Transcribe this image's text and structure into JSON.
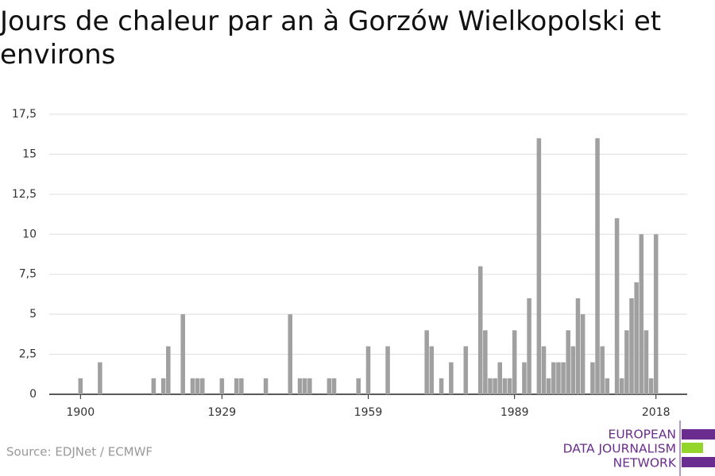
{
  "chart_data": {
    "type": "bar",
    "title": "Jours de chaleur par an à Gorzów Wielkopolski et environs",
    "source": "Source: EDJNet / ECMWF",
    "logo": [
      "EUROPEAN",
      "DATA JOURNALISM",
      "NETWORK"
    ],
    "color": "#a0a0a0",
    "x": [
      1900,
      1901,
      1902,
      1903,
      1904,
      1905,
      1906,
      1907,
      1908,
      1909,
      1910,
      1911,
      1912,
      1913,
      1914,
      1915,
      1916,
      1917,
      1918,
      1919,
      1920,
      1921,
      1922,
      1923,
      1924,
      1925,
      1926,
      1927,
      1928,
      1929,
      1930,
      1931,
      1932,
      1933,
      1934,
      1935,
      1936,
      1937,
      1938,
      1939,
      1940,
      1941,
      1942,
      1943,
      1944,
      1945,
      1946,
      1947,
      1948,
      1949,
      1950,
      1951,
      1952,
      1953,
      1954,
      1955,
      1956,
      1957,
      1958,
      1959,
      1960,
      1961,
      1962,
      1963,
      1964,
      1965,
      1966,
      1967,
      1968,
      1969,
      1970,
      1971,
      1972,
      1973,
      1974,
      1975,
      1976,
      1977,
      1978,
      1979,
      1980,
      1981,
      1982,
      1983,
      1984,
      1985,
      1986,
      1987,
      1988,
      1989,
      1990,
      1991,
      1992,
      1993,
      1994,
      1995,
      1996,
      1997,
      1998,
      1999,
      2000,
      2001,
      2002,
      2003,
      2004,
      2005,
      2006,
      2007,
      2008,
      2009,
      2010,
      2011,
      2012,
      2013,
      2014,
      2015,
      2016,
      2017,
      2018
    ],
    "values": [
      1,
      0,
      0,
      0,
      2,
      0,
      0,
      0,
      0,
      0,
      0,
      0,
      0,
      0,
      0,
      1,
      0,
      1,
      3,
      0,
      0,
      5,
      0,
      1,
      1,
      1,
      0,
      0,
      0,
      1,
      0,
      0,
      1,
      1,
      0,
      0,
      0,
      0,
      1,
      0,
      0,
      0,
      0,
      5,
      0,
      1,
      1,
      1,
      0,
      0,
      0,
      1,
      1,
      0,
      0,
      0,
      0,
      1,
      0,
      3,
      0,
      0,
      0,
      3,
      0,
      0,
      0,
      0,
      0,
      0,
      0,
      4,
      3,
      0,
      1,
      0,
      2,
      0,
      0,
      3,
      0,
      0,
      8,
      4,
      1,
      1,
      2,
      1,
      1,
      4,
      0,
      2,
      6,
      0,
      16,
      3,
      1,
      2,
      2,
      2,
      4,
      3,
      6,
      5,
      0,
      2,
      16,
      3,
      1,
      0,
      11,
      1,
      4,
      6,
      7,
      10,
      4,
      1,
      10
    ],
    "xlim": [
      1893.6,
      2024.4
    ],
    "xticks": [
      1900,
      1929,
      1959,
      1989,
      2018
    ],
    "ylim": [
      0,
      17.5
    ],
    "yticks": [
      0,
      {
        "value": 2.5,
        "label": "2,5"
      },
      5,
      {
        "value": 7.5,
        "label": "7,5"
      },
      10,
      {
        "value": 12.5,
        "label": "12,5"
      },
      15,
      {
        "value": 17.5,
        "label": "17,5"
      }
    ],
    "grid": true
  }
}
